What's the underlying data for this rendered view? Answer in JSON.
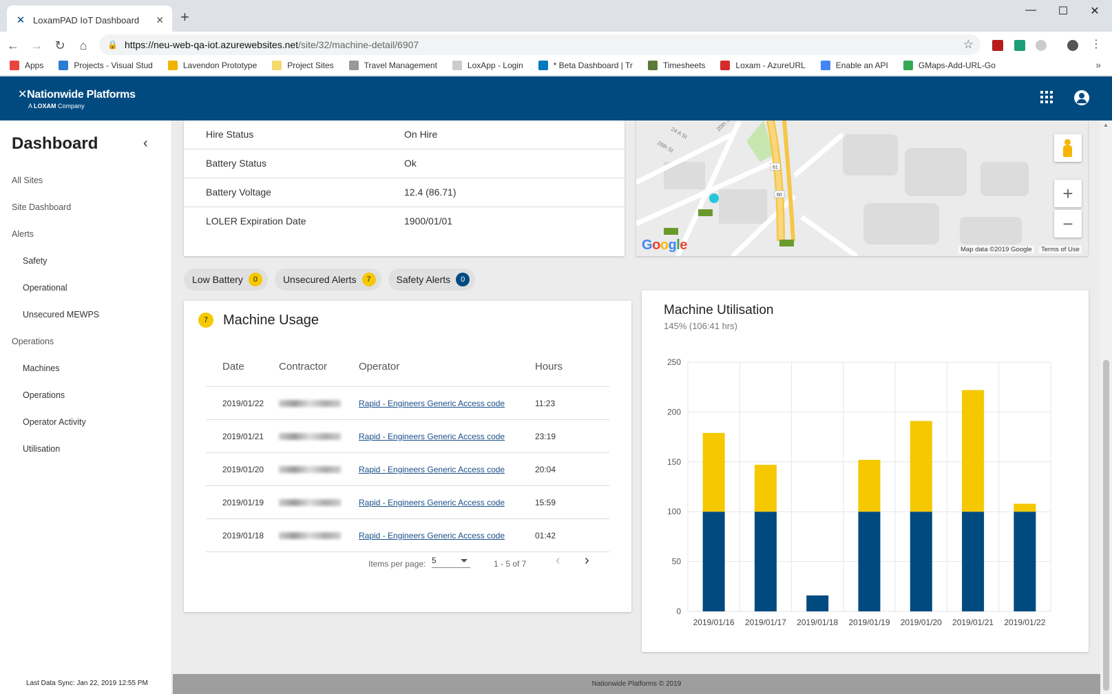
{
  "browser": {
    "tab_title": "LoxamPAD IoT Dashboard",
    "url_host": "https://neu-web-qa-iot.azurewebsites.net",
    "url_path": "/site/32/machine-detail/6907",
    "bookmarks": [
      {
        "label": "Apps",
        "color": "#e8453c"
      },
      {
        "label": "Projects - Visual Stud",
        "color": "#2b7cd3"
      },
      {
        "label": "Lavendon Prototype",
        "color": "#f0b400"
      },
      {
        "label": "Project Sites",
        "color": "#f6d96b"
      },
      {
        "label": "Travel Management",
        "color": "#999999"
      },
      {
        "label": "LoxApp - Login",
        "color": "#cccccc"
      },
      {
        "label": "* Beta Dashboard | Tr",
        "color": "#0079bf"
      },
      {
        "label": "Timesheets",
        "color": "#5b7a3a"
      },
      {
        "label": "Loxam - AzureURL",
        "color": "#d62b2b"
      },
      {
        "label": "Enable an API",
        "color": "#4285f4"
      },
      {
        "label": "GMaps-Add-URL-Go",
        "color": "#34a853"
      }
    ]
  },
  "header": {
    "brand": "Nationwide Platforms",
    "tagline_prefix": "A",
    "tagline_brand": "LOXAM",
    "tagline_suffix": "Company"
  },
  "sidebar": {
    "title": "Dashboard",
    "items": [
      {
        "label": "All Sites",
        "level": 1
      },
      {
        "label": "Site Dashboard",
        "level": 1
      },
      {
        "label": "Alerts",
        "level": 1
      },
      {
        "label": "Safety",
        "level": 2
      },
      {
        "label": "Operational",
        "level": 2
      },
      {
        "label": "Unsecured MEWPS",
        "level": 2
      },
      {
        "label": "Operations",
        "level": 1
      },
      {
        "label": "Machines",
        "level": 2
      },
      {
        "label": "Operations",
        "level": 2
      },
      {
        "label": "Operator Activity",
        "level": 2
      },
      {
        "label": "Utilisation",
        "level": 2
      }
    ],
    "last_sync": "Last Data Sync: Jan 22, 2019 12:55 PM"
  },
  "details": [
    {
      "key": "Hire Status",
      "value": "On Hire"
    },
    {
      "key": "Battery Status",
      "value": "Ok"
    },
    {
      "key": "Battery Voltage",
      "value": "12.4 (86.71)"
    },
    {
      "key": "LOLER Expiration Date",
      "value": "1900/01/01"
    }
  ],
  "map": {
    "google": "Google",
    "map_data": "Map data ©2019 Google",
    "terms": "Terms of Use",
    "road_labels": [
      "61",
      "60",
      "24 A St",
      "26th St",
      "20th St"
    ]
  },
  "chips": [
    {
      "label": "Low Battery",
      "count": "0",
      "style": "yellow"
    },
    {
      "label": "Unsecured Alerts",
      "count": "7",
      "style": "yellow"
    },
    {
      "label": "Safety Alerts",
      "count": "0",
      "style": "blue"
    }
  ],
  "usage": {
    "badge": "7",
    "title": "Machine Usage",
    "headers": {
      "date": "Date",
      "contractor": "Contractor",
      "operator": "Operator",
      "hours": "Hours"
    },
    "rows": [
      {
        "date": "2019/01/22",
        "operator": "Rapid - Engineers Generic Access code",
        "hours": "11:23"
      },
      {
        "date": "2019/01/21",
        "operator": "Rapid - Engineers Generic Access code",
        "hours": "23:19"
      },
      {
        "date": "2019/01/20",
        "operator": "Rapid - Engineers Generic Access code",
        "hours": "20:04"
      },
      {
        "date": "2019/01/19",
        "operator": "Rapid - Engineers Generic Access code",
        "hours": "15:59"
      },
      {
        "date": "2019/01/18",
        "operator": "Rapid - Engineers Generic Access code",
        "hours": "01:42"
      }
    ],
    "items_per_page_label": "Items per page:",
    "items_per_page": "5",
    "range": "1 - 5 of 7"
  },
  "utilisation": {
    "title": "Machine Utilisation",
    "subtitle": "145% (106:41 hrs)"
  },
  "chart_data": {
    "type": "bar",
    "stacked": true,
    "categories": [
      "2019/01/16",
      "2019/01/17",
      "2019/01/18",
      "2019/01/19",
      "2019/01/20",
      "2019/01/21",
      "2019/01/22"
    ],
    "series": [
      {
        "values": [
          100,
          100,
          16,
          100,
          100,
          100,
          100
        ],
        "color": "#004a80"
      },
      {
        "values": [
          79,
          47,
          0,
          52,
          91,
          122,
          8
        ],
        "color": "#f5c800"
      }
    ],
    "ylim": [
      0,
      250
    ],
    "yticks": [
      0,
      50,
      100,
      150,
      200,
      250
    ],
    "grid": true
  },
  "footer": "Nationwide Platforms © 2019"
}
